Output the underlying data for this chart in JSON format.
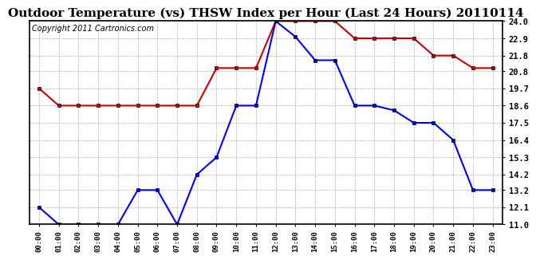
{
  "title": "Outdoor Temperature (vs) THSW Index per Hour (Last 24 Hours) 20110114",
  "copyright": "Copyright 2011 Cartronics.com",
  "hours": [
    0,
    1,
    2,
    3,
    4,
    5,
    6,
    7,
    8,
    9,
    10,
    11,
    12,
    13,
    14,
    15,
    16,
    17,
    18,
    19,
    20,
    21,
    22,
    23
  ],
  "blue_data": [
    12.1,
    11.0,
    11.0,
    11.0,
    11.0,
    13.2,
    13.2,
    11.0,
    14.2,
    15.3,
    18.6,
    18.6,
    24.0,
    23.0,
    21.5,
    21.5,
    18.6,
    18.6,
    18.3,
    17.5,
    17.5,
    16.4,
    13.2,
    13.2
  ],
  "red_data": [
    19.7,
    18.6,
    18.6,
    18.6,
    18.6,
    18.6,
    18.6,
    18.6,
    18.6,
    21.0,
    21.0,
    21.0,
    24.0,
    24.0,
    24.0,
    24.0,
    22.9,
    22.9,
    22.9,
    22.9,
    21.8,
    21.8,
    21.0,
    21.0
  ],
  "blue_color": "#0000ff",
  "red_color": "#cc0000",
  "bg_color": "#ffffff",
  "grid_color": "#b0b0b0",
  "ylim": [
    11.0,
    24.0
  ],
  "yticks": [
    11.0,
    12.1,
    13.2,
    14.2,
    15.3,
    16.4,
    17.5,
    18.6,
    19.7,
    20.8,
    21.8,
    22.9,
    24.0
  ],
  "xlim": [
    -0.5,
    23.5
  ],
  "title_fontsize": 11,
  "copyright_fontsize": 7
}
